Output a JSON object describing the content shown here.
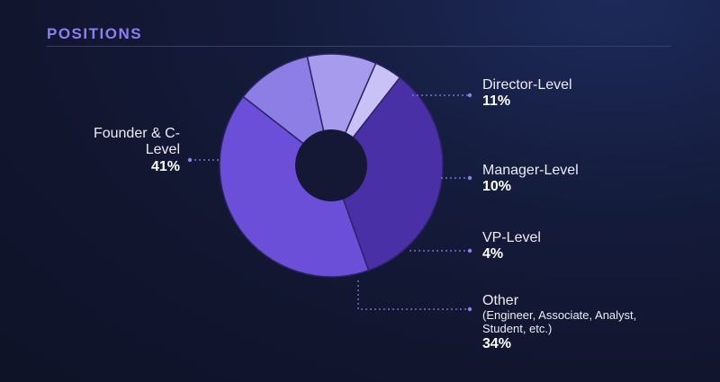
{
  "header": {
    "title": "POSITIONS"
  },
  "chart_data": {
    "type": "pie",
    "title": "POSITIONS",
    "slices": [
      {
        "label": "Director-Level",
        "value": 11,
        "pct_label": "11%",
        "note": "",
        "color": "#8d7ee6"
      },
      {
        "label": "Manager-Level",
        "value": 10,
        "pct_label": "10%",
        "note": "",
        "color": "#a79bed"
      },
      {
        "label": "VP-Level",
        "value": 4,
        "pct_label": "4%",
        "note": "",
        "color": "#cac1f6"
      },
      {
        "label": "Other",
        "value": 34,
        "pct_label": "34%",
        "note": "(Engineer, Associate, Analyst, Student, etc.)",
        "color": "#4a30a6"
      },
      {
        "label": "Founder & C-Level",
        "value": 41,
        "pct_label": "41%",
        "note": "",
        "color": "#6b4fd8"
      }
    ],
    "hole_color": "#141834",
    "leader_color": "#8e7ff0"
  }
}
